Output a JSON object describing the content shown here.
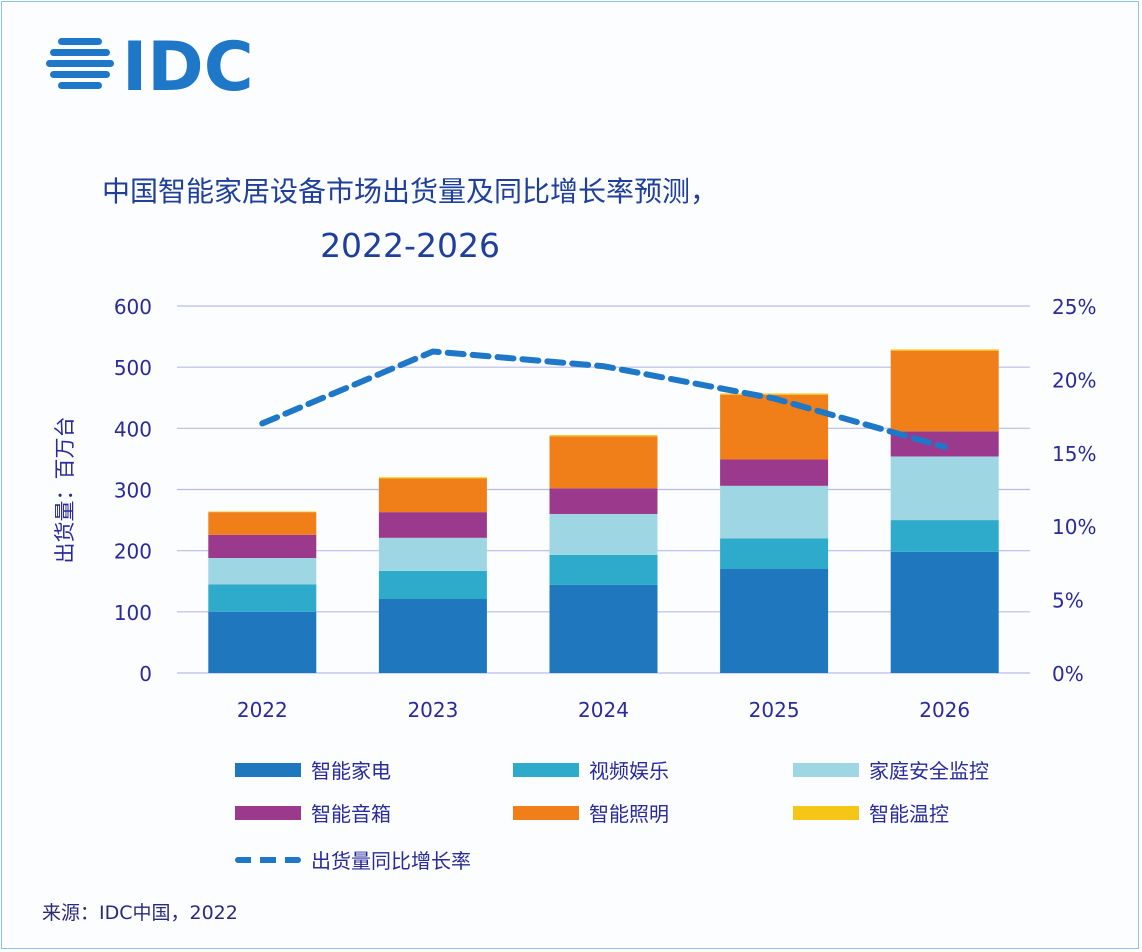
{
  "logo_text": "IDC",
  "chart_data": {
    "type": "bar",
    "stacked": true,
    "title": [
      "中国智能家居设备市场出货量及同比增长率预测，",
      "2022-2026"
    ],
    "ylabel": "出货量：百万台",
    "ylim": [
      0,
      600
    ],
    "yticks": [
      "0",
      "100",
      "200",
      "300",
      "400",
      "500",
      "600"
    ],
    "y2lim": [
      0,
      25
    ],
    "y2ticks": [
      "0%",
      "5%",
      "10%",
      "15%",
      "20%",
      "25%"
    ],
    "categories": [
      "2022",
      "2023",
      "2024",
      "2025",
      "2026"
    ],
    "grid": true,
    "legend_position": "bottom",
    "series": [
      {
        "name": "智能家电",
        "color": "#1f77bd",
        "values": [
          100,
          121,
          144,
          170,
          198
        ]
      },
      {
        "name": "视频娱乐",
        "color": "#2eaacb",
        "values": [
          45,
          46,
          49,
          50,
          52
        ]
      },
      {
        "name": "家庭安全监控",
        "color": "#9fd6e4",
        "values": [
          43,
          54,
          67,
          86,
          104
        ]
      },
      {
        "name": "智能音箱",
        "color": "#9b3a8c",
        "values": [
          38,
          42,
          42,
          43,
          41
        ]
      },
      {
        "name": "智能照明",
        "color": "#f07f1a",
        "values": [
          37,
          55,
          85,
          106,
          132
        ]
      },
      {
        "name": "智能温控",
        "color": "#f5c518",
        "values": [
          1,
          2,
          2,
          2,
          2
        ]
      }
    ],
    "line": {
      "name": "出货量同比增长率",
      "color": "#1f77c8",
      "axis": "right",
      "style": "dashed",
      "values": [
        17.0,
        21.9,
        20.9,
        18.7,
        15.4
      ]
    }
  },
  "source": "来源：IDC中国，2022"
}
